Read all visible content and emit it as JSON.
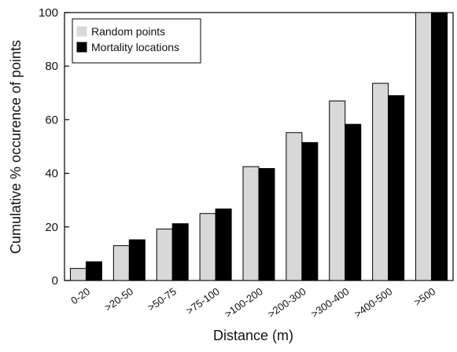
{
  "chart_data": {
    "type": "bar",
    "title": "",
    "xlabel": "Distance (m)",
    "ylabel": "Cumulative % occurence of points",
    "ylim": [
      0,
      100
    ],
    "yticks": [
      0,
      20,
      40,
      60,
      80,
      100
    ],
    "grid": false,
    "legend_position": "top-left",
    "categories": [
      "0-20",
      ">20-50",
      ">50-75",
      ">75-100",
      ">100-200",
      ">200-300",
      ">300-400",
      ">400-500",
      ">500"
    ],
    "series": [
      {
        "name": "Random points",
        "color": "#d8d8d8",
        "values": [
          4.5,
          13,
          19.2,
          25,
          42.5,
          55.2,
          67,
          73.6,
          100
        ]
      },
      {
        "name": "Mortality locations",
        "color": "#000000",
        "values": [
          7,
          15.2,
          21.2,
          26.7,
          41.8,
          51.5,
          58.3,
          69,
          100
        ]
      }
    ]
  }
}
